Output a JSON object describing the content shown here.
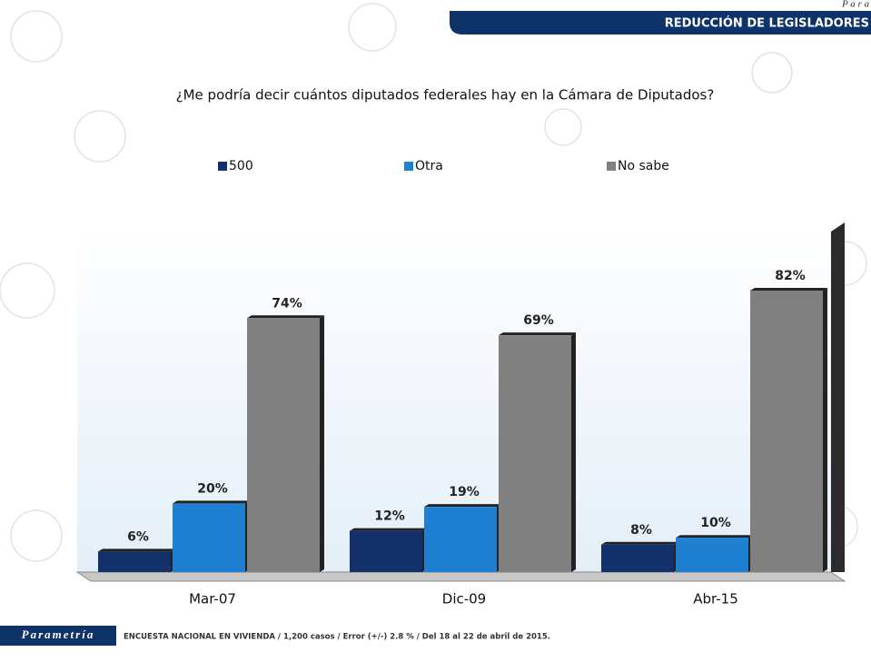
{
  "header": {
    "brand": "P a r a",
    "section": "REDUCCIÓN  DE LEGISLADORES"
  },
  "chart_data": {
    "type": "bar",
    "title": "¿Me podría decir cuántos diputados federales hay en la Cámara de Diputados?",
    "categories": [
      "Mar-07",
      "Dic-09",
      "Abr-15"
    ],
    "series": [
      {
        "name": "500",
        "color": "#14306b",
        "values": [
          6,
          12,
          8
        ],
        "value_labels": [
          "6%",
          "12%",
          "8%"
        ]
      },
      {
        "name": "Otra",
        "color": "#1f7fd0",
        "values": [
          20,
          19,
          10
        ],
        "value_labels": [
          "20%",
          "19%",
          "10%"
        ]
      },
      {
        "name": "No sabe",
        "color": "#808080",
        "values": [
          74,
          69,
          82
        ],
        "value_labels": [
          "74%",
          "69%",
          "82%"
        ]
      }
    ],
    "legend": "top"
  },
  "footer": {
    "logo": "Parametría",
    "note": "ENCUESTA  NACIONAL EN VIVIENDA  / 1,200 casos / Error (+/-) 2.8 % / Del 18 al 22 de abril de 2015."
  }
}
